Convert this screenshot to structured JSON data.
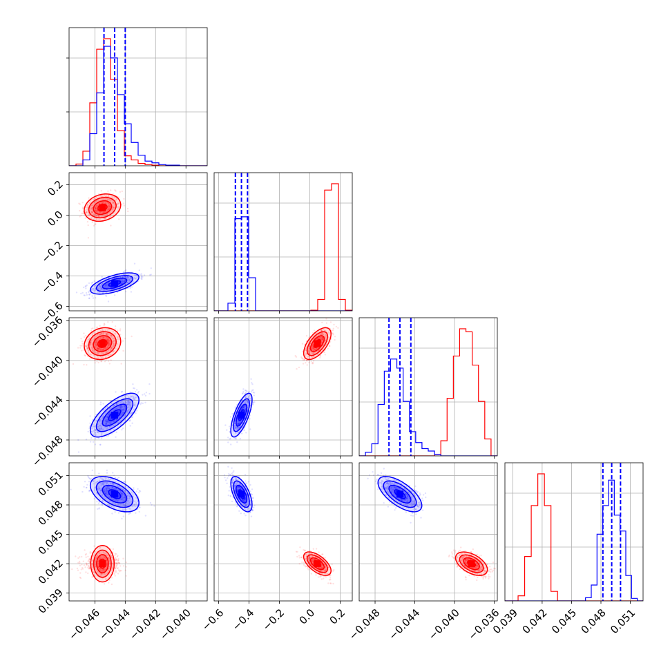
{
  "chart_data": {
    "type": "corner",
    "parameters": [
      {
        "ticks": [
          "−0.046",
          "−0.044",
          "−0.042",
          "−0.040"
        ],
        "tick_values": [
          -0.046,
          -0.044,
          -0.042,
          -0.04
        ],
        "range": [
          -0.0477,
          -0.0386
        ]
      },
      {
        "ticks": [
          "−0.6",
          "−0.4",
          "−0.2",
          "0.0",
          "0.2"
        ],
        "tick_values": [
          -0.6,
          -0.4,
          -0.2,
          0.0,
          0.2
        ],
        "range": [
          -0.63,
          0.28
        ]
      },
      {
        "ticks": [
          "−0.048",
          "−0.044",
          "−0.040",
          "−0.036"
        ],
        "tick_values": [
          -0.048,
          -0.044,
          -0.04,
          -0.036
        ],
        "range": [
          -0.0496,
          -0.0357
        ]
      },
      {
        "ticks": [
          "0.039",
          "0.042",
          "0.045",
          "0.048",
          "0.051"
        ],
        "tick_values": [
          0.039,
          0.042,
          0.045,
          0.048,
          0.051
        ],
        "range": [
          0.0382,
          0.0523
        ]
      }
    ],
    "series": [
      {
        "color": "#ff0000",
        "means": [
          -0.0455,
          0.05,
          -0.0383,
          0.042
        ],
        "sigmas": [
          0.0006,
          0.045,
          0.0008,
          0.0006
        ],
        "correlations": [
          [
            0,
            1,
            0.2
          ],
          [
            0,
            2,
            0.15
          ],
          [
            0,
            3,
            0.0
          ],
          [
            1,
            2,
            0.6
          ],
          [
            1,
            3,
            -0.6
          ],
          [
            2,
            3,
            -0.5
          ]
        ],
        "histograms": [
          {
            "edges_range": [
              -0.0477,
              -0.0386
            ],
            "counts": [
              0,
              3,
              25,
              108,
              200,
              218,
              148,
              60,
              17,
              10,
              4,
              2,
              1,
              0,
              0,
              0,
              0,
              0,
              0,
              0
            ]
          },
          {
            "edges_range": [
              -0.63,
              0.28
            ],
            "counts": [
              0,
              0,
              0,
              0,
              0,
              0,
              0,
              0,
              0,
              0,
              0,
              0,
              0,
              0,
              1,
              18,
              190,
              200,
              18,
              1
            ]
          },
          {
            "edges_range": [
              -0.0496,
              -0.0357
            ],
            "counts": [
              0,
              0,
              0,
              0,
              0,
              0,
              0,
              0,
              0,
              0,
              0,
              0,
              2,
              25,
              95,
              165,
              210,
              205,
              150,
              90,
              28,
              0
            ]
          },
          {
            "edges_range": [
              0.0382,
              0.0523
            ],
            "counts": [
              0,
              0,
              8,
              70,
              150,
              200,
              150,
              15,
              0,
              0,
              0,
              0,
              0,
              0,
              0,
              0,
              0,
              0,
              0,
              0,
              0
            ]
          }
        ]
      },
      {
        "color": "#0000ff",
        "means": [
          -0.0447,
          -0.45,
          -0.0455,
          0.0491
        ],
        "sigmas": [
          0.0008,
          0.035,
          0.0011,
          0.0009
        ],
        "correlations": [
          [
            0,
            1,
            0.6
          ],
          [
            0,
            2,
            0.7
          ],
          [
            0,
            3,
            -0.5
          ],
          [
            1,
            2,
            0.7
          ],
          [
            1,
            3,
            -0.6
          ],
          [
            2,
            3,
            -0.65
          ]
        ],
        "histograms": [
          {
            "edges_range": [
              -0.0477,
              -0.0386
            ],
            "counts": [
              0,
              0,
              10,
              55,
              125,
              205,
              185,
              122,
              72,
              40,
              18,
              8,
              5,
              2,
              1,
              1,
              0,
              0,
              0,
              0
            ]
          },
          {
            "edges_range": [
              -0.63,
              0.28
            ],
            "counts": [
              0,
              0,
              12,
              145,
              148,
              52,
              0,
              0,
              0,
              0,
              0,
              0,
              0,
              0,
              0,
              0,
              0,
              0,
              0,
              0
            ]
          },
          {
            "edges_range": [
              -0.0496,
              -0.0357
            ],
            "counts": [
              0,
              6,
              20,
              85,
              140,
              160,
              145,
              90,
              40,
              22,
              12,
              8,
              2,
              0,
              0,
              0,
              0,
              0,
              0,
              0,
              0,
              0
            ]
          },
          {
            "edges_range": [
              0.0382,
              0.0523
            ],
            "counts": [
              0,
              0,
              0,
              0,
              0,
              0,
              0,
              0,
              0,
              0,
              0,
              0,
              0,
              0,
              5,
              25,
              105,
              150,
              190,
              135,
              110,
              40,
              4,
              0
            ]
          }
        ],
        "quantiles": [
          [
            -0.0454,
            -0.0447,
            -0.044
          ],
          [
            -0.49,
            -0.45,
            -0.41
          ],
          [
            -0.0466,
            -0.0455,
            -0.0444
          ],
          [
            0.0482,
            0.0491,
            0.05
          ]
        ]
      }
    ],
    "grid": true
  }
}
